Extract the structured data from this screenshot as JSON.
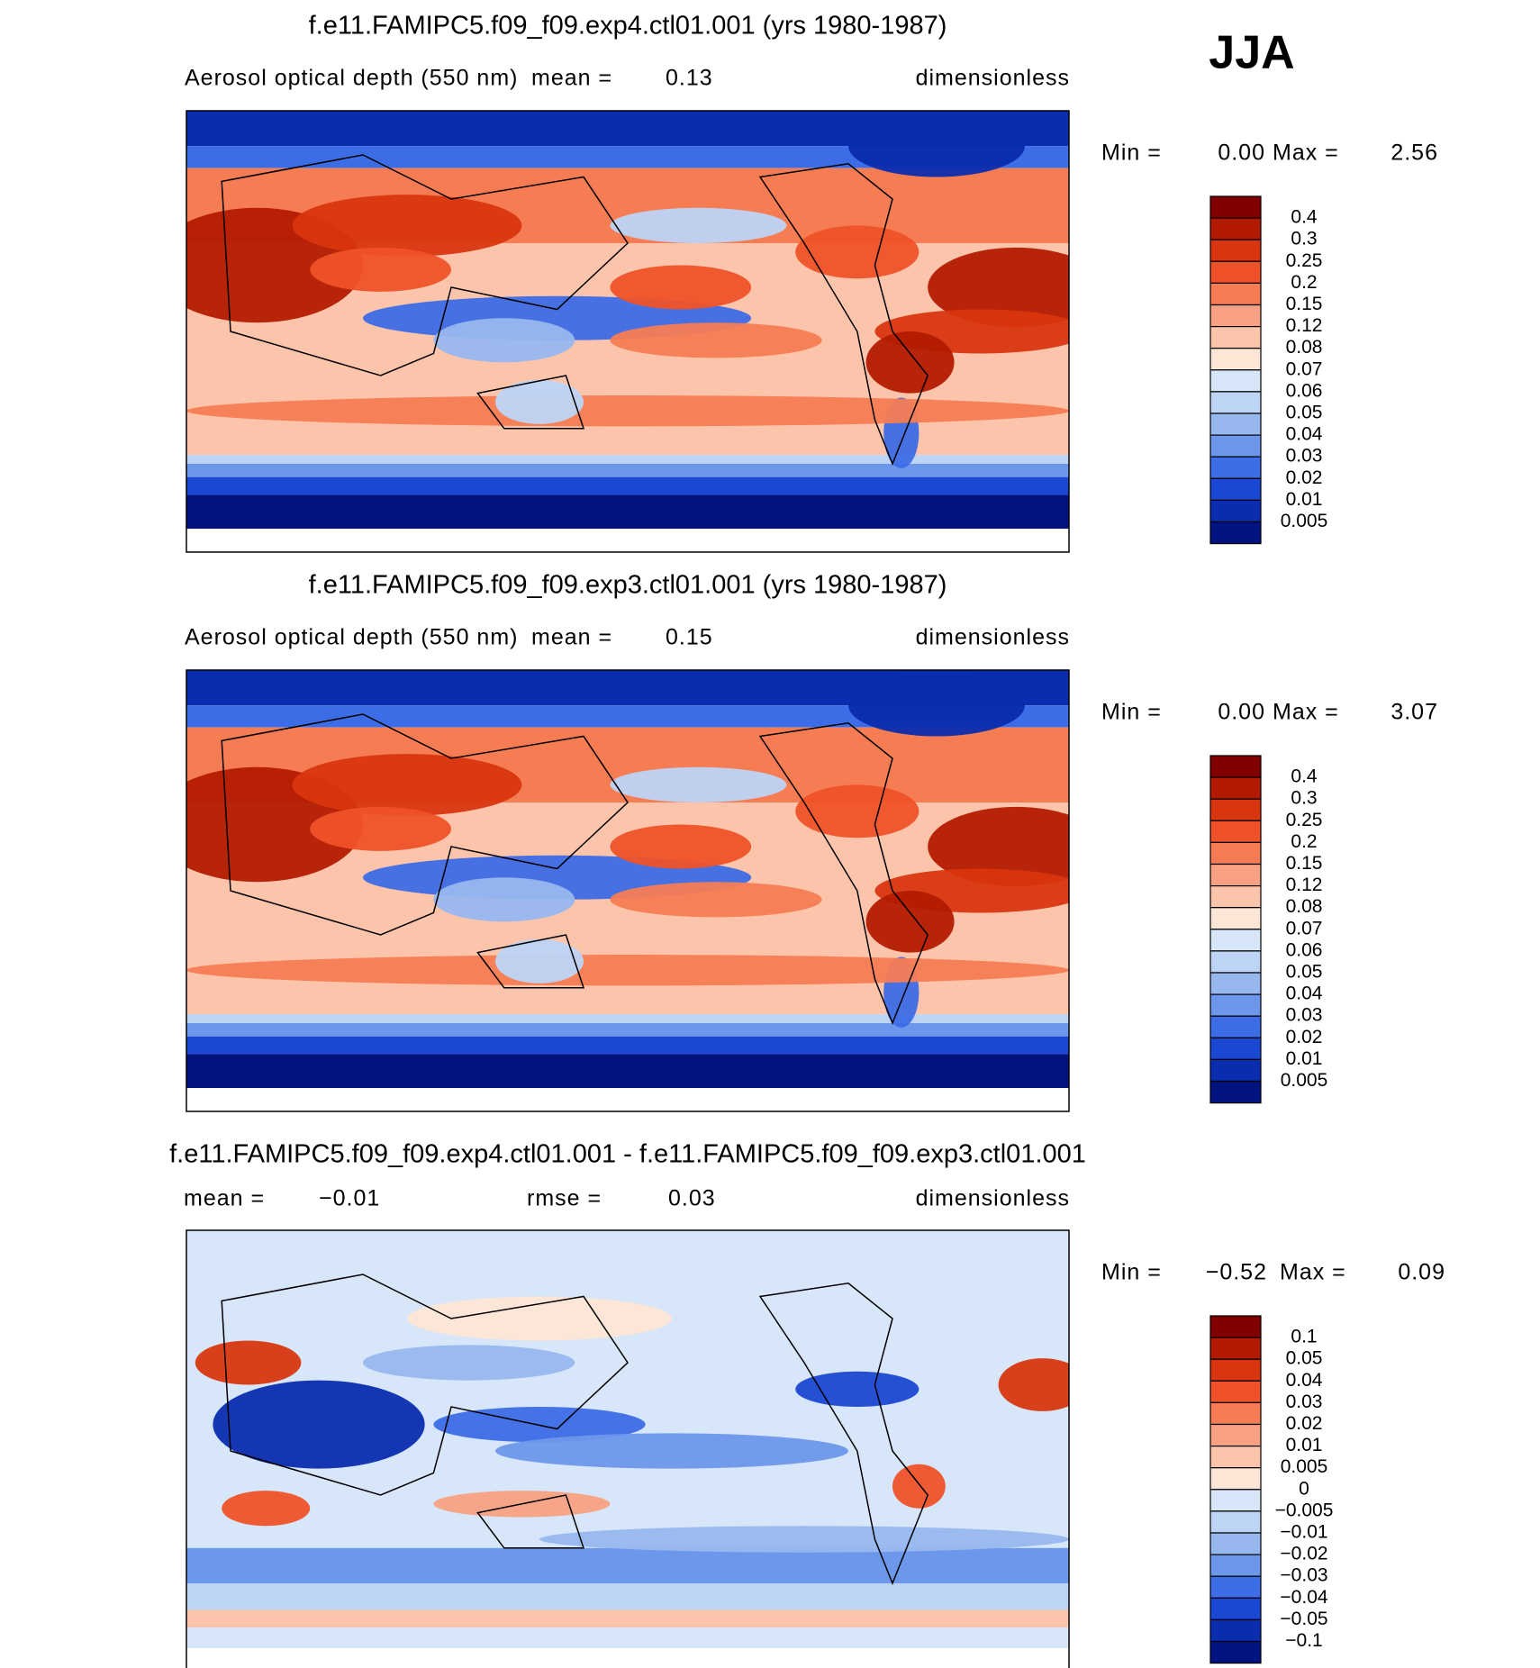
{
  "label": "JJA",
  "panels": [
    {
      "title": "f.e11.FAMIPC5.f09_f09.exp4.ctl01.001 (yrs 1980-1987)",
      "variable": "Aerosol optical depth (550 nm)",
      "stats": [
        {
          "label": "mean =",
          "value": "0.13"
        }
      ],
      "units": "dimensionless",
      "min_label": "Min =",
      "min": "0.00",
      "max_label": "Max =",
      "max": "2.56",
      "colorbar": {
        "labels": [
          "0.4",
          "0.3",
          "0.25",
          "0.2",
          "0.15",
          "0.12",
          "0.08",
          "0.07",
          "0.06",
          "0.05",
          "0.04",
          "0.03",
          "0.02",
          "0.01",
          "0.005"
        ],
        "colors": [
          "#800000",
          "#b31b00",
          "#d8360f",
          "#ef5228",
          "#f67c53",
          "#f9a182",
          "#fcc5ab",
          "#fde6d6",
          "#d7e6f8",
          "#bdd4f5",
          "#98b7ef",
          "#6d97eb",
          "#3d6de6",
          "#1b48d2",
          "#0a2caf",
          "#00137e"
        ]
      }
    },
    {
      "title": "f.e11.FAMIPC5.f09_f09.exp3.ctl01.001 (yrs 1980-1987)",
      "variable": "Aerosol optical depth (550 nm)",
      "stats": [
        {
          "label": "mean =",
          "value": "0.15"
        }
      ],
      "units": "dimensionless",
      "min_label": "Min =",
      "min": "0.00",
      "max_label": "Max =",
      "max": "3.07",
      "colorbar": {
        "labels": [
          "0.4",
          "0.3",
          "0.25",
          "0.2",
          "0.15",
          "0.12",
          "0.08",
          "0.07",
          "0.06",
          "0.05",
          "0.04",
          "0.03",
          "0.02",
          "0.01",
          "0.005"
        ],
        "colors": [
          "#800000",
          "#b31b00",
          "#d8360f",
          "#ef5228",
          "#f67c53",
          "#f9a182",
          "#fcc5ab",
          "#fde6d6",
          "#d7e6f8",
          "#bdd4f5",
          "#98b7ef",
          "#6d97eb",
          "#3d6de6",
          "#1b48d2",
          "#0a2caf",
          "#00137e"
        ]
      }
    },
    {
      "title": "f.e11.FAMIPC5.f09_f09.exp4.ctl01.001 - f.e11.FAMIPC5.f09_f09.exp3.ctl01.001",
      "stats": [
        {
          "label": "mean =",
          "value": "−0.01"
        },
        {
          "label": "rmse =",
          "value": "0.03"
        }
      ],
      "units": "dimensionless",
      "min_label": "Min =",
      "min": "−0.52",
      "max_label": "Max =",
      "max": "0.09",
      "colorbar": {
        "labels": [
          "0.1",
          "0.05",
          "0.04",
          "0.03",
          "0.02",
          "0.01",
          "0.005",
          "0",
          "−0.005",
          "−0.01",
          "−0.02",
          "−0.03",
          "−0.04",
          "−0.05",
          "−0.1"
        ],
        "colors": [
          "#800000",
          "#b31b00",
          "#d8360f",
          "#ef5228",
          "#f67c53",
          "#f9a182",
          "#fcc5ab",
          "#fde6d6",
          "#d7e6f8",
          "#bdd4f5",
          "#98b7ef",
          "#6d97eb",
          "#3d6de6",
          "#1b48d2",
          "#0a2caf",
          "#00137e"
        ]
      }
    }
  ]
}
